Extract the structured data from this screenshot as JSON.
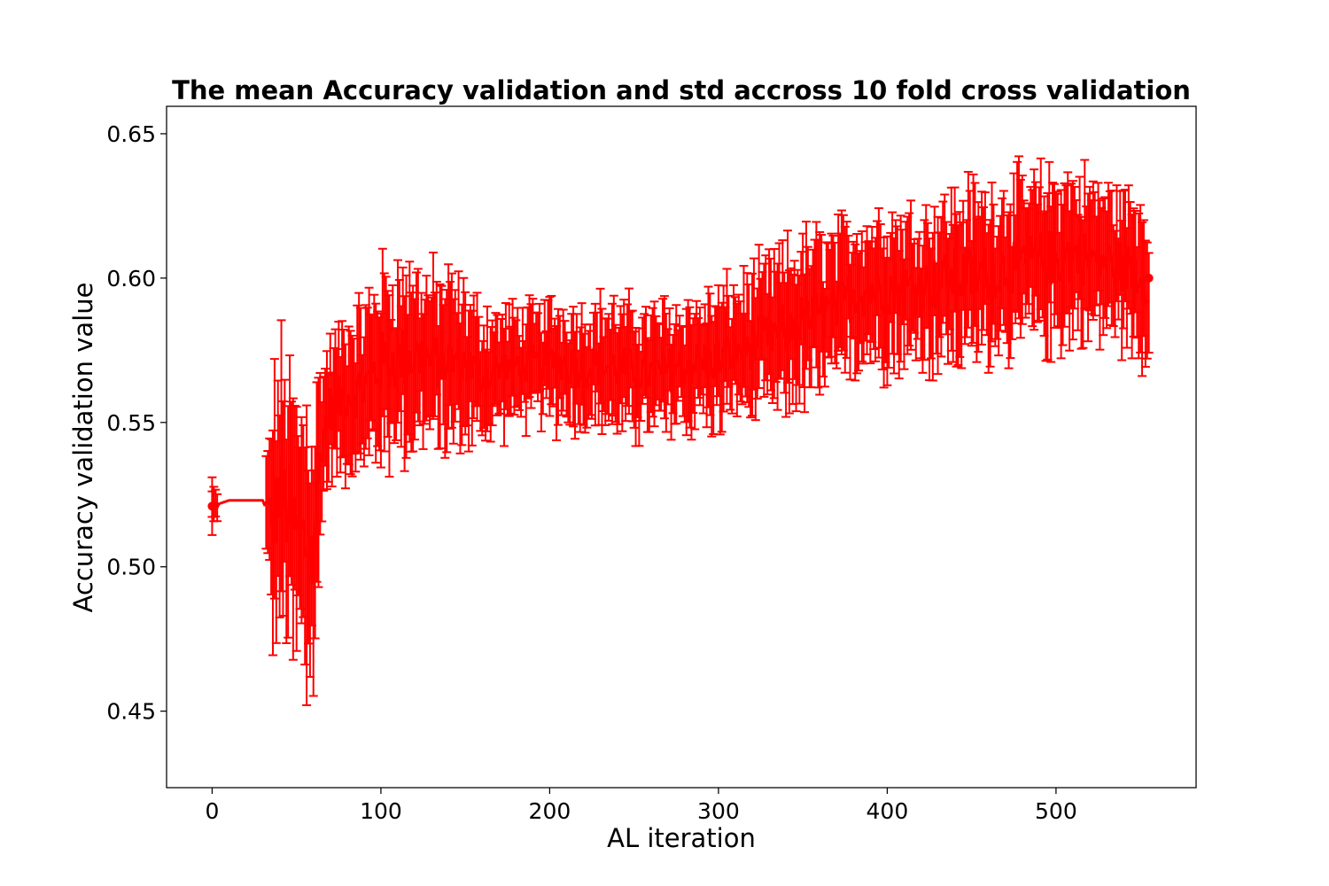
{
  "chart_data": {
    "type": "line",
    "title": "The mean Accuracy validation and std accross 10 fold cross validation",
    "xlabel": "AL iteration",
    "ylabel": "Accuracy validation value",
    "xlim": [
      -27,
      583
    ],
    "ylim": [
      0.4235,
      0.6595
    ],
    "x_ticks": [
      0,
      100,
      200,
      300,
      400,
      500
    ],
    "y_ticks": [
      0.45,
      0.5,
      0.55,
      0.6,
      0.65
    ],
    "grid": false,
    "legend": "none",
    "color": "#ff0000",
    "error_bars": true,
    "series": [
      {
        "x": [
          0,
          10,
          20,
          30,
          35,
          40,
          45,
          50,
          55,
          60,
          65,
          70,
          80,
          90,
          100,
          110,
          120,
          130,
          140,
          150,
          160,
          170,
          180,
          190,
          200,
          210,
          220,
          230,
          240,
          250,
          260,
          270,
          280,
          290,
          300,
          310,
          320,
          330,
          340,
          350,
          360,
          370,
          380,
          390,
          400,
          410,
          420,
          430,
          440,
          450,
          460,
          470,
          480,
          490,
          500,
          510,
          520,
          530,
          540,
          550,
          555
        ],
        "mean": [
          0.521,
          0.523,
          0.523,
          0.523,
          0.515,
          0.525,
          0.52,
          0.512,
          0.508,
          0.503,
          0.545,
          0.555,
          0.56,
          0.562,
          0.57,
          0.572,
          0.573,
          0.571,
          0.572,
          0.57,
          0.566,
          0.568,
          0.57,
          0.57,
          0.571,
          0.57,
          0.569,
          0.57,
          0.569,
          0.568,
          0.567,
          0.568,
          0.57,
          0.571,
          0.572,
          0.575,
          0.577,
          0.58,
          0.582,
          0.585,
          0.587,
          0.589,
          0.595,
          0.596,
          0.597,
          0.596,
          0.597,
          0.598,
          0.6,
          0.601,
          0.602,
          0.604,
          0.605,
          0.606,
          0.607,
          0.608,
          0.607,
          0.606,
          0.604,
          0.602,
          0.6
        ],
        "std": [
          0.005,
          0.001,
          0.001,
          0.001,
          0.032,
          0.038,
          0.04,
          0.035,
          0.04,
          0.045,
          0.02,
          0.018,
          0.02,
          0.022,
          0.026,
          0.025,
          0.024,
          0.023,
          0.022,
          0.02,
          0.018,
          0.016,
          0.015,
          0.015,
          0.016,
          0.017,
          0.016,
          0.017,
          0.017,
          0.017,
          0.017,
          0.018,
          0.017,
          0.017,
          0.018,
          0.018,
          0.019,
          0.02,
          0.021,
          0.022,
          0.022,
          0.021,
          0.02,
          0.02,
          0.021,
          0.021,
          0.021,
          0.022,
          0.023,
          0.023,
          0.022,
          0.022,
          0.022,
          0.022,
          0.023,
          0.022,
          0.021,
          0.02,
          0.02,
          0.021,
          0.022
        ]
      }
    ]
  }
}
